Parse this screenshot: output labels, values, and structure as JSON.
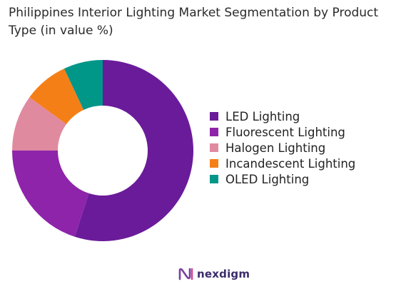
{
  "chart_data": {
    "type": "pie",
    "variant": "donut",
    "title": "Philippines Interior Lighting Market Segmentation by Product Type (in value %)",
    "series": [
      {
        "name": "LED Lighting",
        "value": 55,
        "color": "#6a1b9a"
      },
      {
        "name": "Fluorescent Lighting",
        "value": 20,
        "color": "#8e24aa"
      },
      {
        "name": "Halogen Lighting",
        "value": 10,
        "color": "#e08aa0"
      },
      {
        "name": "Incandescent Lighting",
        "value": 8,
        "color": "#f57f17"
      },
      {
        "name": "OLED Lighting",
        "value": 7,
        "color": "#009688"
      }
    ],
    "legend_position": "right"
  },
  "brand": {
    "name": "nexdigm",
    "logo_icon": "nexdigm-logo-icon"
  }
}
